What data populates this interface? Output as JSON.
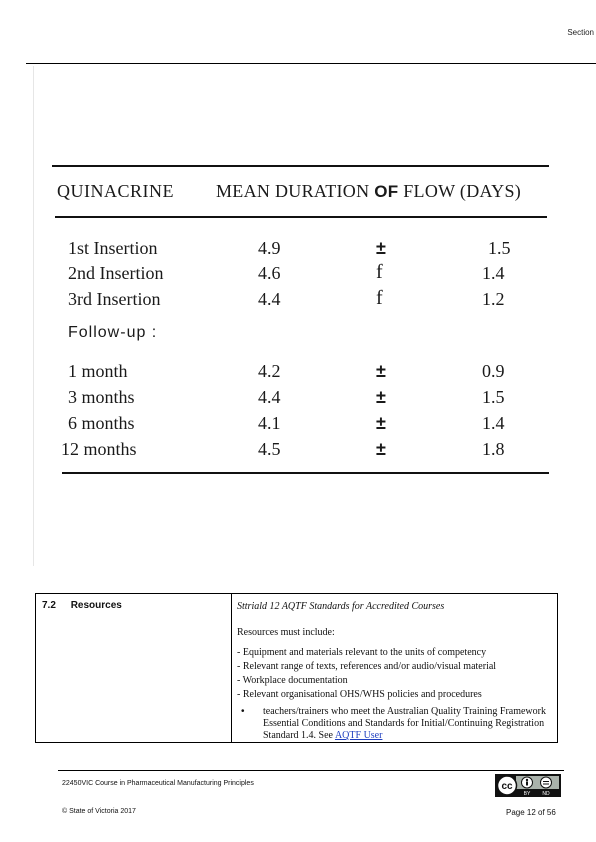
{
  "header": {
    "section_label": "Section"
  },
  "scanned_table": {
    "col_quinacrine": "QUINACRINE",
    "col_mean_prefix": "MEAN  DURATION",
    "col_mean_of": "OF",
    "col_mean_suffix": "FLOW  (DAYS)",
    "insertions": [
      {
        "label": "1st  Insertion",
        "mean": "4.9",
        "symbol": "±",
        "sd": "1.5"
      },
      {
        "label": "2nd  Insertion",
        "mean": "4.6",
        "symbol": "f",
        "sd": "1.4"
      },
      {
        "label": "3rd  Insertion",
        "mean": "4.4",
        "symbol": "f",
        "sd": "1.2"
      }
    ],
    "followup_label": "Follow-up :",
    "followups": [
      {
        "label": "1 month",
        "mean": "4.2",
        "symbol": "±",
        "sd": "0.9"
      },
      {
        "label": "3 months",
        "mean": "4.4",
        "symbol": "±",
        "sd": "1.5"
      },
      {
        "label": "6 months",
        "mean": "4.1",
        "symbol": "±",
        "sd": "1.4"
      },
      {
        "label": "12  months",
        "mean": "4.5",
        "symbol": "±",
        "sd": "1.8"
      }
    ]
  },
  "resources": {
    "number": "7.2",
    "title": "Resources",
    "standards_ref": "Sttriald 12 AQTF Standards for  Accredited Courses",
    "must_include": "Resources must include:",
    "items": [
      "- Equipment and materials relevant to the units of competency",
      "- Relevant range of texts, references and/or  audio/visual material",
      "- Workplace documentation",
      "- Relevant organisational OHS/WHS policies and procedures"
    ],
    "bullet_symbol": "•",
    "bullet_text": "teachers/trainers who meet the Australian Quality Training Framework Essential Conditions and Standards for Initial/Continuing Registration Standard 1.4. See",
    "bullet_link": "AQTF User"
  },
  "footer": {
    "course": "22450VIC Course in Pharmaceutical Manufacturing Principles",
    "copyright": "© State of Victoria 2017",
    "page": "Page 12 of 56",
    "license_badge": {
      "cc": "cc",
      "by": "BY",
      "nd": "ND"
    }
  }
}
